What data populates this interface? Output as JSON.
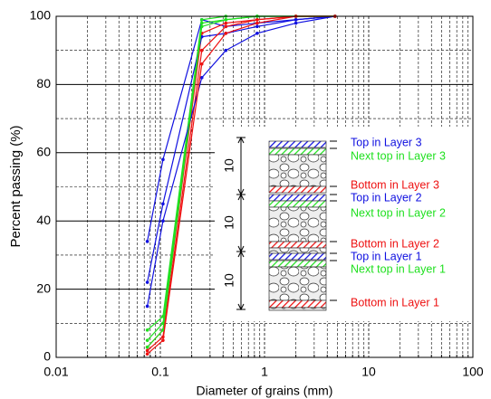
{
  "chart_data": {
    "type": "line",
    "x_label": "Diameter of grains (mm)",
    "y_label": "Percent passing (%)",
    "x": [
      0.075,
      0.106,
      0.25,
      0.425,
      0.85,
      2,
      4.75
    ],
    "series": [
      {
        "name": "Top in Layer 3",
        "color": "#1010e0",
        "values": [
          34,
          58,
          99,
          97,
          98,
          99,
          100
        ]
      },
      {
        "name": "Next top in Layer 3",
        "color": "#20e020",
        "values": [
          8,
          12,
          99,
          100,
          100,
          100,
          100
        ]
      },
      {
        "name": "Bottom in Layer 3",
        "color": "#ee1111",
        "values": [
          3,
          8,
          95,
          98,
          99,
          100,
          100
        ]
      },
      {
        "name": "Top in Layer 2",
        "color": "#1010e0",
        "values": [
          22,
          45,
          94,
          95,
          97,
          99,
          100
        ]
      },
      {
        "name": "Next top in Layer 2",
        "color": "#20e020",
        "values": [
          5,
          10,
          98,
          99,
          100,
          100,
          100
        ]
      },
      {
        "name": "Bottom in Layer 2",
        "color": "#ee1111",
        "values": [
          2,
          6,
          90,
          97,
          99,
          100,
          100
        ]
      },
      {
        "name": "Top in Layer 1",
        "color": "#1010e0",
        "values": [
          15,
          40,
          82,
          90,
          95,
          98,
          100
        ]
      },
      {
        "name": "Next top in Layer 1",
        "color": "#20e020",
        "values": [
          3,
          8,
          97,
          99,
          100,
          100,
          100
        ]
      },
      {
        "name": "Bottom in Layer 1",
        "color": "#ee1111",
        "values": [
          1,
          5,
          86,
          95,
          98,
          100,
          100
        ]
      }
    ],
    "xlim": [
      0.01,
      100
    ],
    "ylim": [
      0,
      100
    ],
    "log_x": true,
    "grid": true,
    "xticks": [
      0.01,
      0.1,
      1,
      10,
      100
    ],
    "xminorticks": [
      0.02,
      0.03,
      0.04,
      0.05,
      0.06,
      0.07,
      0.08,
      0.09,
      0.2,
      0.3,
      0.4,
      0.5,
      0.6,
      0.7,
      0.8,
      0.9,
      2,
      3,
      4,
      5,
      6,
      7,
      8,
      9,
      20,
      30,
      40,
      50,
      60,
      70,
      80,
      90
    ],
    "yticks": [
      0,
      20,
      40,
      60,
      80,
      100
    ],
    "yminorticks": [
      10,
      30,
      50,
      70,
      90
    ],
    "annotations": [
      "10",
      "10",
      "10"
    ]
  }
}
